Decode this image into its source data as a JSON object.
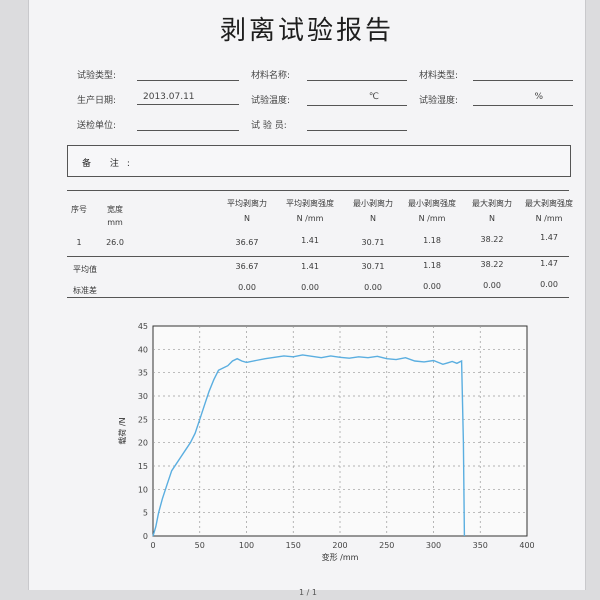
{
  "report": {
    "title": "剥离试验报告",
    "fields": {
      "sample_type_label": "试验类型:",
      "sample_type_value": "",
      "material_name_label": "材料名称:",
      "material_name_value": "",
      "material_type_label": "材料类型:",
      "material_type_value": "",
      "production_date_label": "生产日期:",
      "production_date_value": "2013.07.11",
      "test_temp_label": "试验温度:",
      "test_temp_unit": "℃",
      "test_humidity_label": "试验湿度:",
      "test_humidity_unit": "%",
      "test_unit_label": "送检单位:",
      "test_unit_value": "",
      "tester_label": "试 验 员:",
      "tester_value": ""
    },
    "note_label": "备 注:",
    "table": {
      "headers": [
        [
          "序号",
          ""
        ],
        [
          "宽度",
          "mm"
        ],
        [
          "平均剥离力",
          "N"
        ],
        [
          "平均剥离强度",
          "N /mm"
        ],
        [
          "最小剥离力",
          "N"
        ],
        [
          "最小剥离强度",
          "N /mm"
        ],
        [
          "最大剥离力",
          "N"
        ],
        [
          "最大剥离强度",
          "N /mm"
        ]
      ],
      "rows": [
        [
          "1",
          "26.0",
          "36.67",
          "1.41",
          "30.71",
          "1.18",
          "38.22",
          "1.47"
        ],
        [
          "平均值",
          "",
          "36.67",
          "1.41",
          "30.71",
          "1.18",
          "38.22",
          "1.47"
        ],
        [
          "标准差",
          "",
          "0.00",
          "0.00",
          "0.00",
          "0.00",
          "0.00",
          "0.00"
        ]
      ]
    },
    "footer": "1 / 1"
  },
  "chart_data": {
    "type": "line",
    "xlabel": "变形 /mm",
    "ylabel": "载荷 /N",
    "xlim": [
      0,
      400
    ],
    "ylim": [
      0,
      45
    ],
    "xticks": [
      0,
      50,
      100,
      150,
      200,
      250,
      300,
      350,
      400
    ],
    "yticks": [
      0,
      5,
      10,
      15,
      20,
      25,
      30,
      35,
      40,
      45
    ],
    "grid": true,
    "line_color": "#5aaee0",
    "x": [
      0,
      3,
      6,
      10,
      15,
      20,
      25,
      30,
      35,
      40,
      45,
      50,
      55,
      60,
      65,
      70,
      75,
      80,
      85,
      90,
      95,
      100,
      110,
      120,
      130,
      140,
      150,
      160,
      170,
      180,
      190,
      200,
      210,
      220,
      230,
      240,
      250,
      260,
      270,
      280,
      290,
      300,
      305,
      310,
      315,
      320,
      325,
      330,
      332,
      333
    ],
    "y": [
      0,
      2,
      5,
      8,
      11,
      14,
      15.5,
      17,
      18.5,
      20,
      22,
      25,
      28,
      31,
      33.5,
      35.5,
      36,
      36.5,
      37.5,
      38,
      37.5,
      37.2,
      37.6,
      38,
      38.3,
      38.6,
      38.4,
      38.8,
      38.5,
      38.2,
      38.6,
      38.3,
      38.1,
      38.4,
      38.2,
      38.5,
      38,
      37.8,
      38.2,
      37.5,
      37.3,
      37.6,
      37.2,
      36.8,
      37.1,
      37.4,
      37,
      37.5,
      20,
      0
    ]
  }
}
